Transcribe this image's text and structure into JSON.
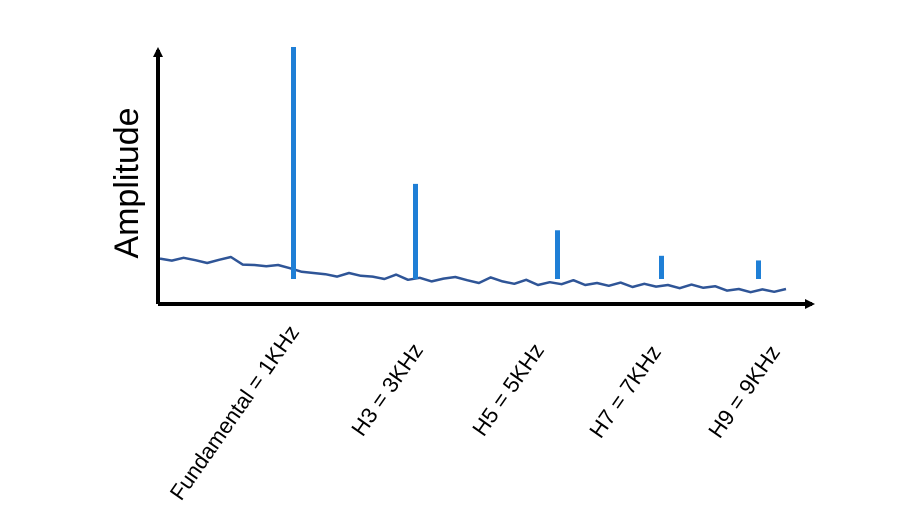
{
  "chart_data": {
    "type": "bar",
    "ylabel": "Amplitude",
    "xlabel": "",
    "title": "",
    "categories": [
      "Fundamental = 1KHz",
      "H3 = 3KHz",
      "H5 = 5KHz",
      "H7 = 7KHz",
      "H9 = 9KHz"
    ],
    "values": [
      100,
      41,
      21,
      10,
      8
    ],
    "ylim": [
      0,
      100
    ],
    "grid": false,
    "noise_floor": [
      8.6,
      8.1,
      8.8,
      8.2,
      7.5,
      8.3,
      9.0,
      7.1,
      7.0,
      6.7,
      7.0,
      6.2,
      5.3,
      5.0,
      4.7,
      4.1,
      5.0,
      4.3,
      4.1,
      3.5,
      4.6,
      3.3,
      3.8,
      2.9,
      3.6,
      4.0,
      3.2,
      2.5,
      3.9,
      2.9,
      2.3,
      3.3,
      2.0,
      2.7,
      2.2,
      3.2,
      2.0,
      2.5,
      1.8,
      2.6,
      1.5,
      2.3,
      1.6,
      2.0,
      1.2,
      2.1,
      1.3,
      1.7,
      0.6,
      1.0,
      0.2,
      0.9,
      0.3,
      1.0
    ],
    "colors": {
      "bars": "#1f7fd6",
      "noise_floor": "#2f5597",
      "axes": "#000000"
    }
  }
}
